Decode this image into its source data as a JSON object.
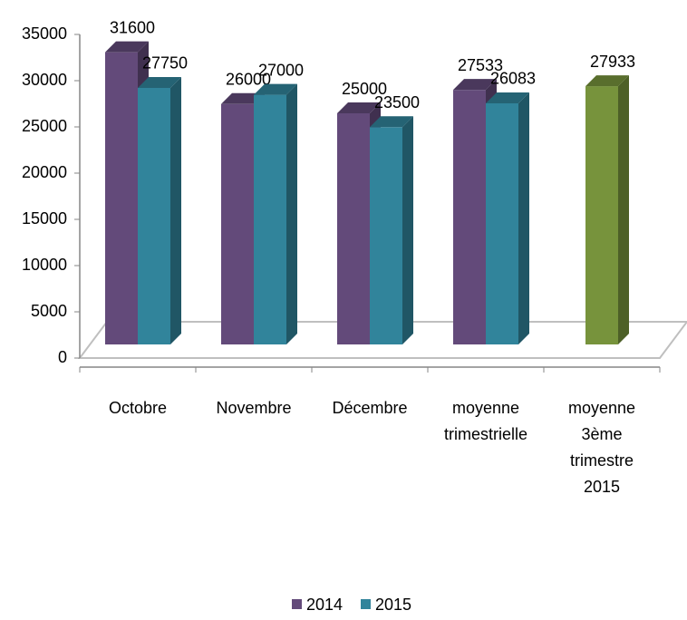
{
  "chart_data": {
    "type": "bar3d",
    "categories": [
      "Octobre",
      "Novembre",
      "Décembre",
      "moyenne trimestrielle",
      "moyenne 3ème trimestre 2015"
    ],
    "series": [
      {
        "name": "2014",
        "color": "#634a7a",
        "values": [
          31600,
          26000,
          25000,
          27533,
          null
        ]
      },
      {
        "name": "2015",
        "color": "#31849b",
        "values": [
          27750,
          27000,
          23500,
          26083,
          null
        ]
      },
      {
        "color": "#77933c",
        "values": [
          null,
          null,
          null,
          null,
          27933
        ]
      }
    ],
    "ylim": [
      0,
      35000
    ],
    "yticks": [
      0,
      5000,
      10000,
      15000,
      20000,
      25000,
      30000,
      35000
    ],
    "legend": "bottom"
  }
}
